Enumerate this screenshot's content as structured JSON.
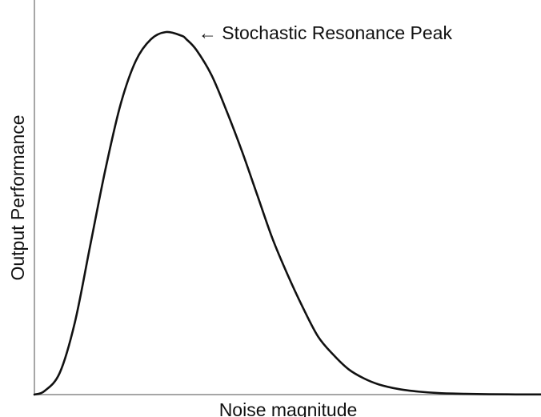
{
  "chart_data": {
    "type": "line",
    "title": "",
    "xlabel": "Noise magnitude",
    "ylabel": "Output Performance",
    "xlim": [
      0,
      1
    ],
    "ylim": [
      0,
      1
    ],
    "grid": false,
    "legend": "none",
    "series": [
      {
        "x": [
          0,
          0.02,
          0.05,
          0.08,
          0.11,
          0.14,
          0.17,
          0.2,
          0.23,
          0.26,
          0.29,
          0.3,
          0.32,
          0.35,
          0.38,
          0.41,
          0.44,
          0.47,
          0.5,
          0.53,
          0.56,
          0.59,
          0.62,
          0.65,
          0.68,
          0.72,
          0.76,
          0.8,
          0.85,
          0.9,
          0.95,
          1.0
        ],
        "y": [
          0,
          0.01,
          0.06,
          0.2,
          0.41,
          0.62,
          0.8,
          0.92,
          0.98,
          1.0,
          0.99,
          0.98,
          0.95,
          0.88,
          0.78,
          0.67,
          0.55,
          0.43,
          0.33,
          0.24,
          0.16,
          0.11,
          0.07,
          0.045,
          0.028,
          0.015,
          0.008,
          0.004,
          0.002,
          0.001,
          0.0005,
          0.0003
        ]
      }
    ],
    "annotations": [
      {
        "text": "← Stochastic Resonance Peak",
        "x": 0.3,
        "y": 1.0
      }
    ],
    "colors": {
      "line": "#111111",
      "axis": "#888888",
      "text": "#111111"
    }
  }
}
